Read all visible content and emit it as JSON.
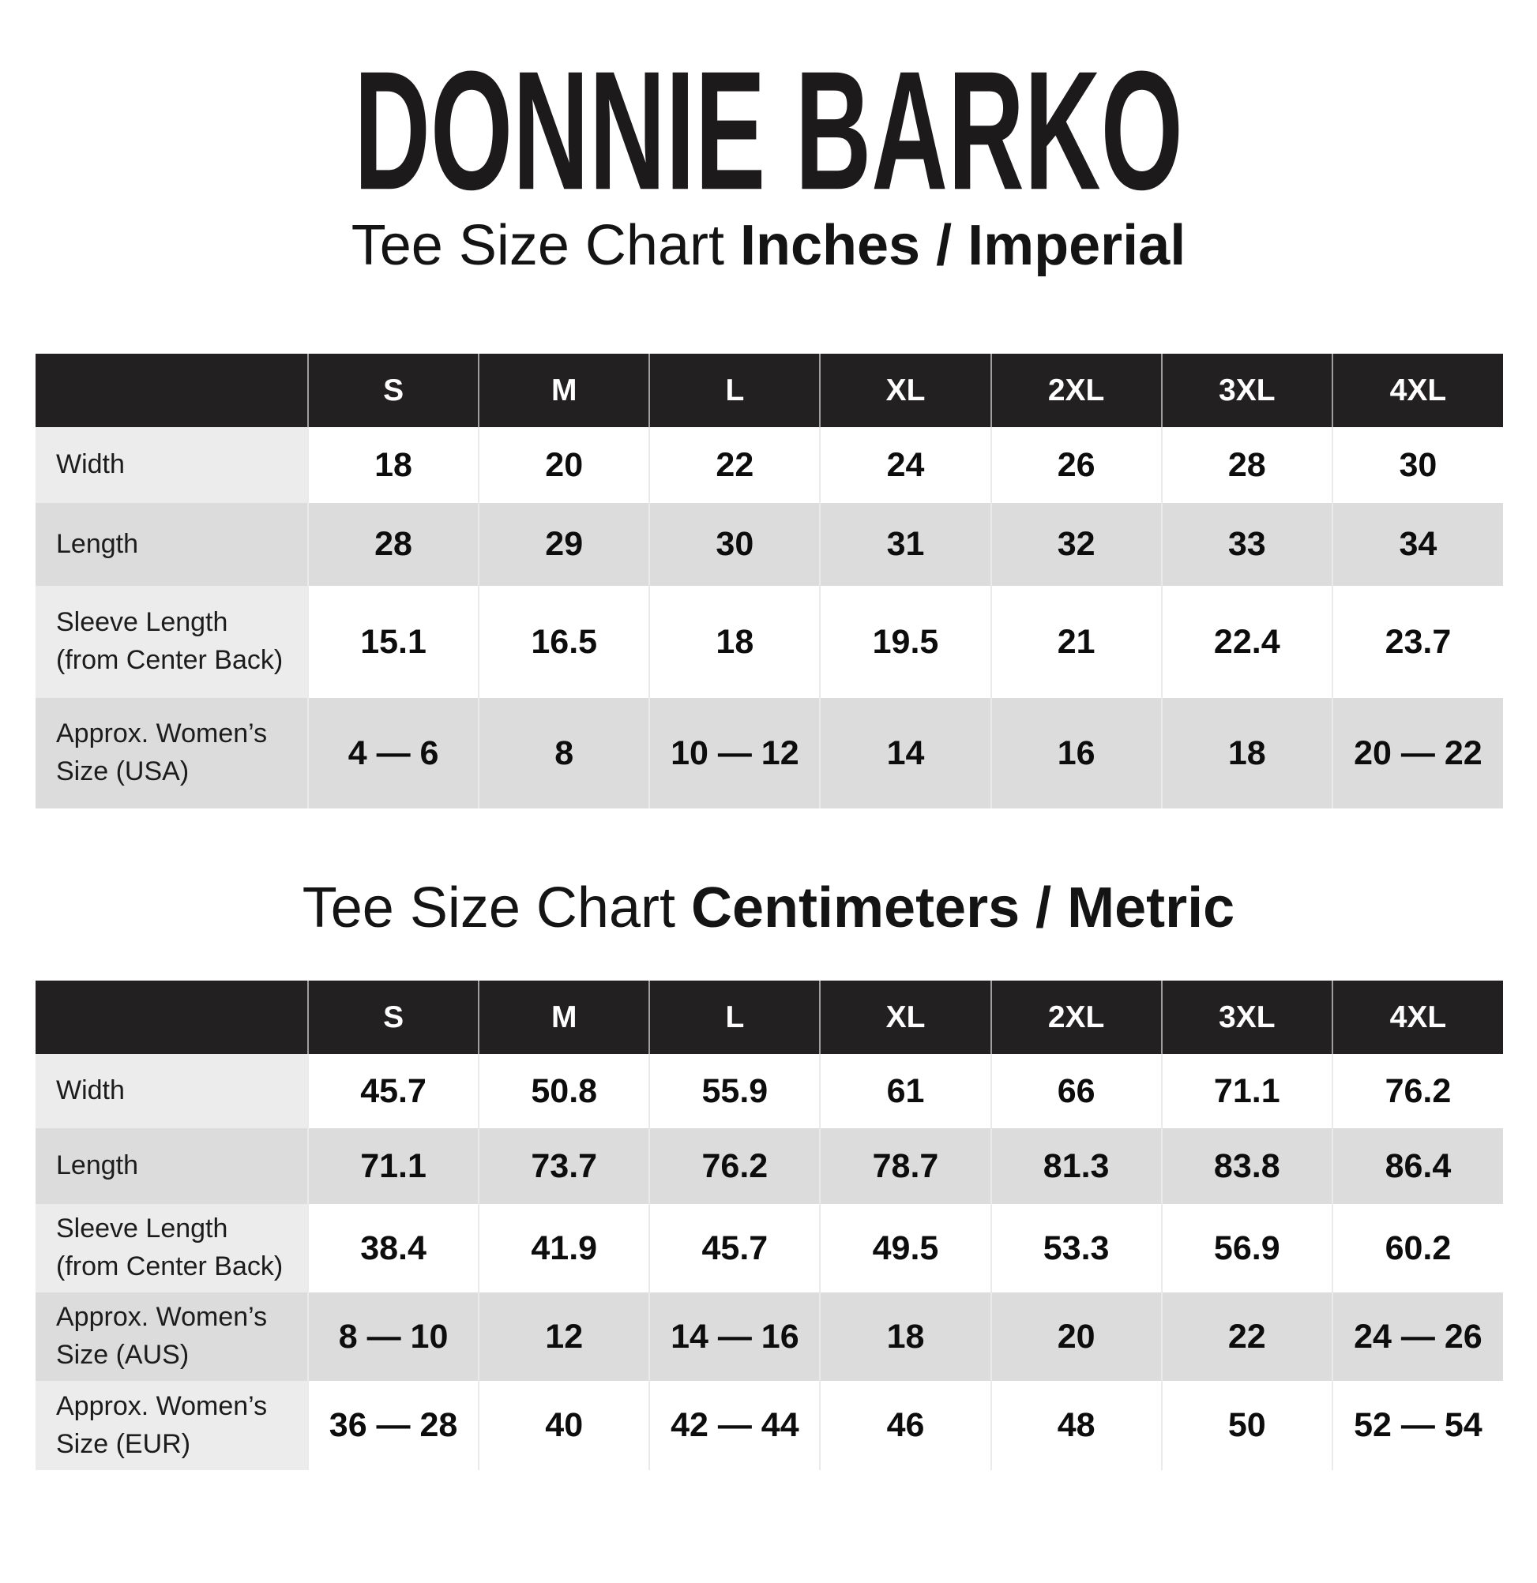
{
  "brand": {
    "logo_text": "DONNIE BARKO"
  },
  "colors": {
    "page_bg": "#ffffff",
    "header_bg": "#232021",
    "header_text": "#ffffff",
    "shaded_row_bg": "#dcdcdc",
    "label_col_bg": "#ececec",
    "text_primary": "#141414"
  },
  "tables": [
    {
      "title_regular": "Tee Size Chart ",
      "title_bold": "Inches / Imperial",
      "columns": [
        "S",
        "M",
        "L",
        "XL",
        "2XL",
        "3XL",
        "4XL"
      ],
      "rows": [
        {
          "label_lines": [
            "Width"
          ],
          "values": [
            "18",
            "20",
            "22",
            "24",
            "26",
            "28",
            "30"
          ]
        },
        {
          "label_lines": [
            "Length"
          ],
          "values": [
            "28",
            "29",
            "30",
            "31",
            "32",
            "33",
            "34"
          ]
        },
        {
          "label_lines": [
            "Sleeve Length",
            "(from Center Back)"
          ],
          "values": [
            "15.1",
            "16.5",
            "18",
            "19.5",
            "21",
            "22.4",
            "23.7"
          ]
        },
        {
          "label_lines": [
            "Approx. Women’s",
            "Size (USA)"
          ],
          "values": [
            "4 — 6",
            "8",
            "10 — 12",
            "14",
            "16",
            "18",
            "20 — 22"
          ]
        }
      ]
    },
    {
      "title_regular": "Tee Size Chart ",
      "title_bold": "Centimeters / Metric",
      "columns": [
        "S",
        "M",
        "L",
        "XL",
        "2XL",
        "3XL",
        "4XL"
      ],
      "rows": [
        {
          "label_lines": [
            "Width"
          ],
          "values": [
            "45.7",
            "50.8",
            "55.9",
            "61",
            "66",
            "71.1",
            "76.2"
          ]
        },
        {
          "label_lines": [
            "Length"
          ],
          "values": [
            "71.1",
            "73.7",
            "76.2",
            "78.7",
            "81.3",
            "83.8",
            "86.4"
          ]
        },
        {
          "label_lines": [
            "Sleeve Length",
            "(from Center Back)"
          ],
          "values": [
            "38.4",
            "41.9",
            "45.7",
            "49.5",
            "53.3",
            "56.9",
            "60.2"
          ]
        },
        {
          "label_lines": [
            "Approx. Women’s",
            "Size (AUS)"
          ],
          "values": [
            "8 — 10",
            "12",
            "14 — 16",
            "18",
            "20",
            "22",
            "24 — 26"
          ]
        },
        {
          "label_lines": [
            "Approx. Women’s",
            "Size (EUR)"
          ],
          "values": [
            "36 — 28",
            "40",
            "42 — 44",
            "46",
            "48",
            "50",
            "52 — 54"
          ]
        }
      ]
    }
  ]
}
